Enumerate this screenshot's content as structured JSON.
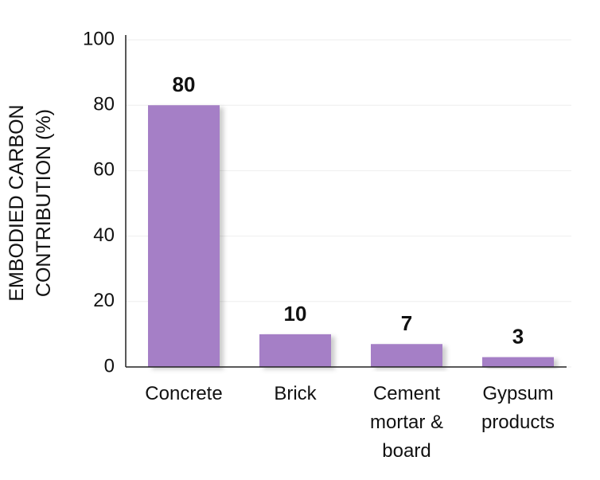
{
  "chart_data": {
    "type": "bar",
    "ylabel": "EMBODIED CARBON CONTRIBUTION (%)",
    "categories": [
      "Concrete",
      "Brick",
      "Cement mortar & board",
      "Gypsum products"
    ],
    "values": [
      80,
      10,
      7,
      3
    ],
    "color": "#a57fc6",
    "ylim": [
      0,
      100
    ],
    "yticks": [
      0,
      20,
      40,
      60,
      80,
      100
    ],
    "grid": true
  }
}
